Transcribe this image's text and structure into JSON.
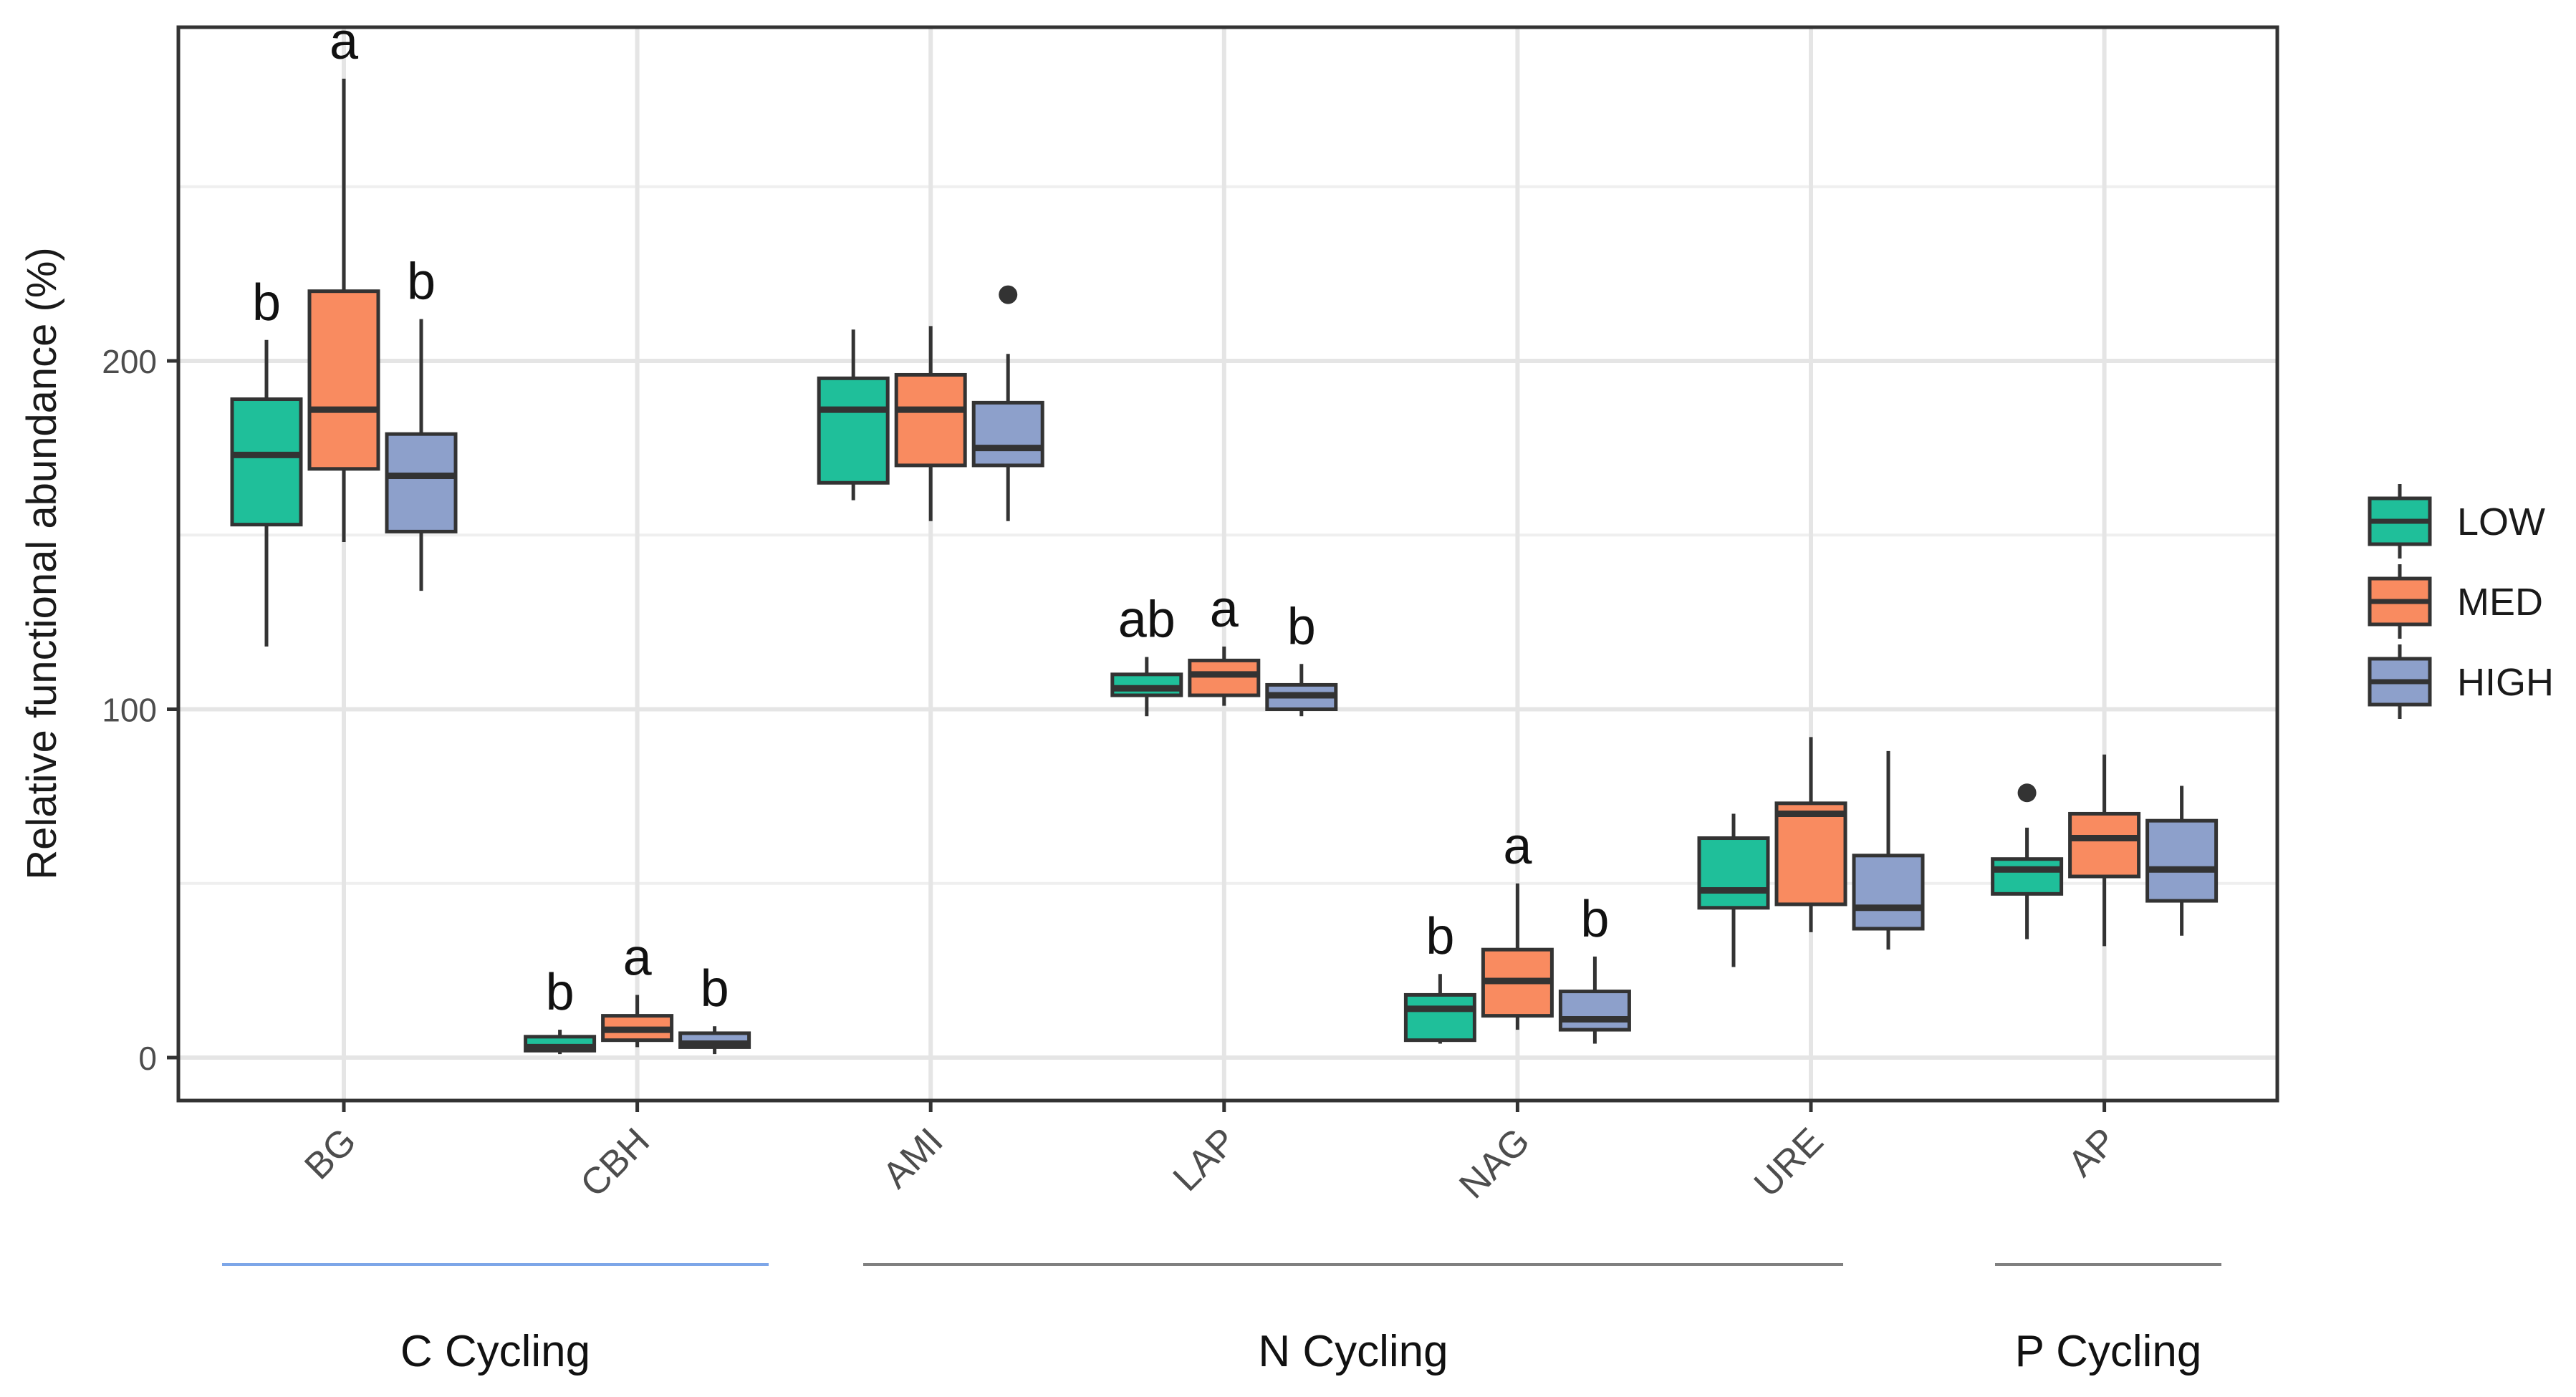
{
  "chart_data": {
    "type": "box",
    "ylabel": "Relative functional abundance (%)",
    "ylim": [
      -12,
      296
    ],
    "yticks": [
      0,
      100,
      200
    ],
    "grid": true,
    "legend_position": "right",
    "categories": [
      "BG",
      "CBH",
      "AMI",
      "LAP",
      "NAG",
      "URE",
      "AP"
    ],
    "series": [
      {
        "name": "LOW",
        "color": "#1fbf9a"
      },
      {
        "name": "MED",
        "color": "#f98b60"
      },
      {
        "name": "HIGH",
        "color": "#8da0cb"
      }
    ],
    "boxes": [
      {
        "category": "BG",
        "series": "LOW",
        "min": 118,
        "q1": 153,
        "median": 173,
        "q3": 189,
        "max": 206,
        "outliers": [],
        "letter": "b"
      },
      {
        "category": "BG",
        "series": "MED",
        "min": 148,
        "q1": 169,
        "median": 186,
        "q3": 220,
        "max": 281,
        "outliers": [],
        "letter": "a"
      },
      {
        "category": "BG",
        "series": "HIGH",
        "min": 134,
        "q1": 151,
        "median": 167,
        "q3": 179,
        "max": 212,
        "outliers": [],
        "letter": "b"
      },
      {
        "category": "CBH",
        "series": "LOW",
        "min": 1,
        "q1": 2,
        "median": 3,
        "q3": 6,
        "max": 8,
        "outliers": [],
        "letter": "b"
      },
      {
        "category": "CBH",
        "series": "MED",
        "min": 3,
        "q1": 5,
        "median": 8,
        "q3": 12,
        "max": 18,
        "outliers": [],
        "letter": "a"
      },
      {
        "category": "CBH",
        "series": "HIGH",
        "min": 1,
        "q1": 3,
        "median": 4,
        "q3": 7,
        "max": 9,
        "outliers": [],
        "letter": "b"
      },
      {
        "category": "AMI",
        "series": "LOW",
        "min": 160,
        "q1": 165,
        "median": 186,
        "q3": 195,
        "max": 209,
        "outliers": [],
        "letter": ""
      },
      {
        "category": "AMI",
        "series": "MED",
        "min": 154,
        "q1": 170,
        "median": 186,
        "q3": 196,
        "max": 210,
        "outliers": [],
        "letter": ""
      },
      {
        "category": "AMI",
        "series": "HIGH",
        "min": 154,
        "q1": 170,
        "median": 175,
        "q3": 188,
        "max": 202,
        "outliers": [
          219
        ],
        "letter": ""
      },
      {
        "category": "LAP",
        "series": "LOW",
        "min": 98,
        "q1": 104,
        "median": 106,
        "q3": 110,
        "max": 115,
        "outliers": [],
        "letter": "ab"
      },
      {
        "category": "LAP",
        "series": "MED",
        "min": 101,
        "q1": 104,
        "median": 110,
        "q3": 114,
        "max": 118,
        "outliers": [],
        "letter": "a"
      },
      {
        "category": "LAP",
        "series": "HIGH",
        "min": 98,
        "q1": 100,
        "median": 104,
        "q3": 107,
        "max": 113,
        "outliers": [],
        "letter": "b"
      },
      {
        "category": "NAG",
        "series": "LOW",
        "min": 4,
        "q1": 5,
        "median": 14,
        "q3": 18,
        "max": 24,
        "outliers": [],
        "letter": "b"
      },
      {
        "category": "NAG",
        "series": "MED",
        "min": 8,
        "q1": 12,
        "median": 22,
        "q3": 31,
        "max": 50,
        "outliers": [],
        "letter": "a"
      },
      {
        "category": "NAG",
        "series": "HIGH",
        "min": 4,
        "q1": 8,
        "median": 11,
        "q3": 19,
        "max": 29,
        "outliers": [],
        "letter": "b"
      },
      {
        "category": "URE",
        "series": "LOW",
        "min": 26,
        "q1": 43,
        "median": 48,
        "q3": 63,
        "max": 70,
        "outliers": [],
        "letter": ""
      },
      {
        "category": "URE",
        "series": "MED",
        "min": 36,
        "q1": 44,
        "median": 70,
        "q3": 73,
        "max": 92,
        "outliers": [],
        "letter": ""
      },
      {
        "category": "URE",
        "series": "HIGH",
        "min": 31,
        "q1": 37,
        "median": 43,
        "q3": 58,
        "max": 88,
        "outliers": [],
        "letter": ""
      },
      {
        "category": "AP",
        "series": "LOW",
        "min": 34,
        "q1": 47,
        "median": 54,
        "q3": 57,
        "max": 66,
        "outliers": [
          76
        ],
        "letter": ""
      },
      {
        "category": "AP",
        "series": "MED",
        "min": 32,
        "q1": 52,
        "median": 63,
        "q3": 70,
        "max": 87,
        "outliers": [],
        "letter": ""
      },
      {
        "category": "AP",
        "series": "HIGH",
        "min": 35,
        "q1": 45,
        "median": 54,
        "q3": 68,
        "max": 78,
        "outliers": [],
        "letter": ""
      }
    ],
    "groups": [
      {
        "label": "C Cycling",
        "categories": [
          "BG",
          "CBH"
        ],
        "line_color": "#7da6e8"
      },
      {
        "label": "N Cycling",
        "categories": [
          "AMI",
          "LAP",
          "NAG",
          "URE"
        ],
        "line_color": "#808080"
      },
      {
        "label": "P Cycling",
        "categories": [
          "AP"
        ],
        "line_color": "#808080"
      }
    ]
  }
}
